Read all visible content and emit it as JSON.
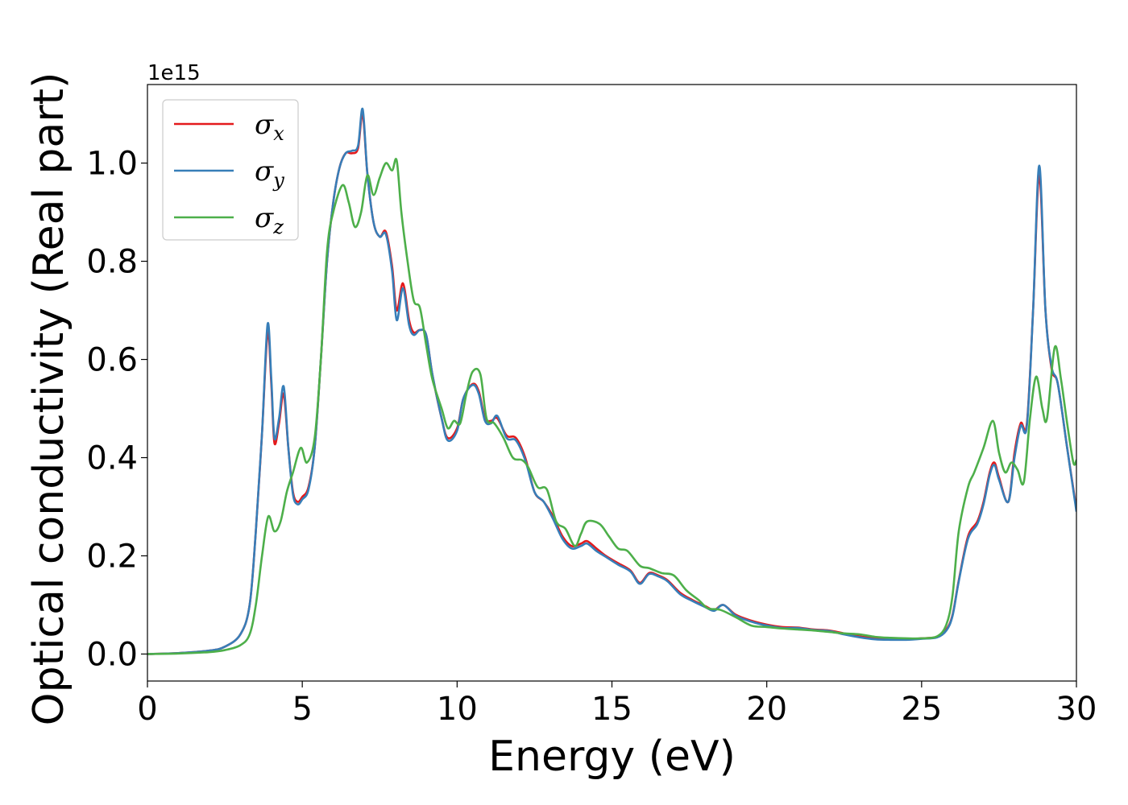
{
  "chart_data": {
    "type": "line",
    "title": "",
    "xlabel": "Energy (eV)",
    "ylabel": "Optical conductivity (Real part)",
    "y_offset_label": "1e15",
    "xlim": [
      0,
      30
    ],
    "ylim": [
      -0.055,
      1.16
    ],
    "xticks": [
      0,
      5,
      10,
      15,
      20,
      25,
      30
    ],
    "xtick_labels": [
      "0",
      "5",
      "10",
      "15",
      "20",
      "25",
      "30"
    ],
    "yticks": [
      0.0,
      0.2,
      0.4,
      0.6,
      0.8,
      1.0
    ],
    "ytick_labels": [
      "0.0",
      "0.2",
      "0.4",
      "0.6",
      "0.8",
      "1.0"
    ],
    "grid": false,
    "legend_position": "top-left",
    "series": [
      {
        "name": "σx",
        "legend_symbol": "σ",
        "legend_sub": "x",
        "color": "#e41a1c",
        "points": [
          [
            0,
            0
          ],
          [
            1,
            0.002
          ],
          [
            2,
            0.007
          ],
          [
            2.5,
            0.015
          ],
          [
            3,
            0.04
          ],
          [
            3.3,
            0.1
          ],
          [
            3.5,
            0.25
          ],
          [
            3.7,
            0.45
          ],
          [
            3.88,
            0.655
          ],
          [
            4,
            0.55
          ],
          [
            4.1,
            0.43
          ],
          [
            4.25,
            0.47
          ],
          [
            4.4,
            0.53
          ],
          [
            4.55,
            0.42
          ],
          [
            4.7,
            0.33
          ],
          [
            4.85,
            0.31
          ],
          [
            5,
            0.32
          ],
          [
            5.2,
            0.34
          ],
          [
            5.4,
            0.42
          ],
          [
            5.6,
            0.6
          ],
          [
            5.8,
            0.8
          ],
          [
            6,
            0.92
          ],
          [
            6.2,
            0.99
          ],
          [
            6.4,
            1.02
          ],
          [
            6.6,
            1.02
          ],
          [
            6.8,
            1.03
          ],
          [
            6.95,
            1.1
          ],
          [
            7.1,
            0.98
          ],
          [
            7.3,
            0.88
          ],
          [
            7.5,
            0.85
          ],
          [
            7.7,
            0.86
          ],
          [
            7.9,
            0.79
          ],
          [
            8.05,
            0.7
          ],
          [
            8.25,
            0.755
          ],
          [
            8.45,
            0.68
          ],
          [
            8.6,
            0.655
          ],
          [
            8.8,
            0.66
          ],
          [
            9,
            0.65
          ],
          [
            9.2,
            0.57
          ],
          [
            9.5,
            0.48
          ],
          [
            9.7,
            0.44
          ],
          [
            10,
            0.46
          ],
          [
            10.2,
            0.52
          ],
          [
            10.5,
            0.55
          ],
          [
            10.7,
            0.535
          ],
          [
            10.9,
            0.48
          ],
          [
            11.1,
            0.475
          ],
          [
            11.3,
            0.48
          ],
          [
            11.6,
            0.445
          ],
          [
            11.9,
            0.44
          ],
          [
            12.2,
            0.4
          ],
          [
            12.5,
            0.33
          ],
          [
            12.8,
            0.31
          ],
          [
            13.1,
            0.28
          ],
          [
            13.4,
            0.24
          ],
          [
            13.7,
            0.22
          ],
          [
            14,
            0.225
          ],
          [
            14.2,
            0.23
          ],
          [
            14.5,
            0.215
          ],
          [
            14.8,
            0.2
          ],
          [
            15.2,
            0.185
          ],
          [
            15.6,
            0.17
          ],
          [
            15.9,
            0.145
          ],
          [
            16.2,
            0.165
          ],
          [
            16.5,
            0.16
          ],
          [
            16.8,
            0.15
          ],
          [
            17.2,
            0.125
          ],
          [
            17.6,
            0.11
          ],
          [
            18,
            0.098
          ],
          [
            18.3,
            0.09
          ],
          [
            18.6,
            0.1
          ],
          [
            19,
            0.08
          ],
          [
            19.5,
            0.068
          ],
          [
            20,
            0.06
          ],
          [
            20.5,
            0.055
          ],
          [
            21,
            0.054
          ],
          [
            21.5,
            0.05
          ],
          [
            22,
            0.048
          ],
          [
            22.5,
            0.042
          ],
          [
            23,
            0.036
          ],
          [
            23.5,
            0.032
          ],
          [
            24,
            0.03
          ],
          [
            24.5,
            0.03
          ],
          [
            25,
            0.032
          ],
          [
            25.5,
            0.035
          ],
          [
            25.8,
            0.05
          ],
          [
            26,
            0.08
          ],
          [
            26.2,
            0.15
          ],
          [
            26.5,
            0.24
          ],
          [
            26.8,
            0.27
          ],
          [
            27,
            0.31
          ],
          [
            27.2,
            0.37
          ],
          [
            27.35,
            0.39
          ],
          [
            27.5,
            0.36
          ],
          [
            27.8,
            0.31
          ],
          [
            28,
            0.41
          ],
          [
            28.2,
            0.47
          ],
          [
            28.4,
            0.47
          ],
          [
            28.6,
            0.7
          ],
          [
            28.8,
            0.975
          ],
          [
            29,
            0.7
          ],
          [
            29.2,
            0.58
          ],
          [
            29.4,
            0.55
          ],
          [
            29.7,
            0.42
          ],
          [
            30,
            0.295
          ]
        ]
      },
      {
        "name": "σy",
        "legend_symbol": "σ",
        "legend_sub": "y",
        "color": "#377eb8",
        "points": [
          [
            0,
            0
          ],
          [
            1,
            0.002
          ],
          [
            2,
            0.007
          ],
          [
            2.5,
            0.015
          ],
          [
            3,
            0.04
          ],
          [
            3.3,
            0.1
          ],
          [
            3.5,
            0.25
          ],
          [
            3.7,
            0.45
          ],
          [
            3.88,
            0.672
          ],
          [
            4,
            0.56
          ],
          [
            4.1,
            0.44
          ],
          [
            4.25,
            0.48
          ],
          [
            4.4,
            0.545
          ],
          [
            4.55,
            0.42
          ],
          [
            4.7,
            0.325
          ],
          [
            4.85,
            0.305
          ],
          [
            5,
            0.315
          ],
          [
            5.2,
            0.335
          ],
          [
            5.4,
            0.42
          ],
          [
            5.6,
            0.6
          ],
          [
            5.8,
            0.8
          ],
          [
            6,
            0.92
          ],
          [
            6.2,
            0.99
          ],
          [
            6.4,
            1.02
          ],
          [
            6.6,
            1.025
          ],
          [
            6.8,
            1.035
          ],
          [
            6.95,
            1.11
          ],
          [
            7.1,
            0.98
          ],
          [
            7.3,
            0.88
          ],
          [
            7.5,
            0.85
          ],
          [
            7.7,
            0.855
          ],
          [
            7.9,
            0.78
          ],
          [
            8.05,
            0.68
          ],
          [
            8.25,
            0.745
          ],
          [
            8.45,
            0.67
          ],
          [
            8.6,
            0.65
          ],
          [
            8.8,
            0.66
          ],
          [
            9,
            0.65
          ],
          [
            9.2,
            0.57
          ],
          [
            9.5,
            0.48
          ],
          [
            9.7,
            0.435
          ],
          [
            10,
            0.455
          ],
          [
            10.2,
            0.52
          ],
          [
            10.5,
            0.548
          ],
          [
            10.7,
            0.53
          ],
          [
            10.9,
            0.475
          ],
          [
            11.1,
            0.47
          ],
          [
            11.3,
            0.485
          ],
          [
            11.6,
            0.44
          ],
          [
            11.9,
            0.435
          ],
          [
            12.2,
            0.395
          ],
          [
            12.5,
            0.33
          ],
          [
            12.8,
            0.31
          ],
          [
            13.1,
            0.275
          ],
          [
            13.4,
            0.235
          ],
          [
            13.7,
            0.215
          ],
          [
            14,
            0.22
          ],
          [
            14.2,
            0.225
          ],
          [
            14.5,
            0.21
          ],
          [
            14.8,
            0.198
          ],
          [
            15.2,
            0.182
          ],
          [
            15.6,
            0.168
          ],
          [
            15.9,
            0.143
          ],
          [
            16.2,
            0.163
          ],
          [
            16.5,
            0.158
          ],
          [
            16.8,
            0.148
          ],
          [
            17.2,
            0.122
          ],
          [
            17.6,
            0.108
          ],
          [
            18,
            0.096
          ],
          [
            18.3,
            0.088
          ],
          [
            18.6,
            0.1
          ],
          [
            19,
            0.078
          ],
          [
            19.5,
            0.066
          ],
          [
            20,
            0.058
          ],
          [
            20.5,
            0.053
          ],
          [
            21,
            0.053
          ],
          [
            21.5,
            0.049
          ],
          [
            22,
            0.047
          ],
          [
            22.5,
            0.04
          ],
          [
            23,
            0.034
          ],
          [
            23.5,
            0.03
          ],
          [
            24,
            0.029
          ],
          [
            24.5,
            0.029
          ],
          [
            25,
            0.031
          ],
          [
            25.5,
            0.034
          ],
          [
            25.8,
            0.048
          ],
          [
            26,
            0.078
          ],
          [
            26.2,
            0.148
          ],
          [
            26.5,
            0.235
          ],
          [
            26.8,
            0.265
          ],
          [
            27,
            0.305
          ],
          [
            27.2,
            0.365
          ],
          [
            27.35,
            0.385
          ],
          [
            27.5,
            0.355
          ],
          [
            27.8,
            0.31
          ],
          [
            28,
            0.4
          ],
          [
            28.2,
            0.465
          ],
          [
            28.4,
            0.465
          ],
          [
            28.6,
            0.7
          ],
          [
            28.8,
            0.995
          ],
          [
            29,
            0.7
          ],
          [
            29.2,
            0.585
          ],
          [
            29.4,
            0.55
          ],
          [
            29.7,
            0.42
          ],
          [
            30,
            0.29
          ]
        ]
      },
      {
        "name": "σz",
        "legend_symbol": "σ",
        "legend_sub": "z",
        "color": "#4daf4a",
        "points": [
          [
            0,
            0
          ],
          [
            1,
            0.001
          ],
          [
            2,
            0.004
          ],
          [
            2.5,
            0.008
          ],
          [
            3,
            0.018
          ],
          [
            3.3,
            0.04
          ],
          [
            3.5,
            0.1
          ],
          [
            3.7,
            0.2
          ],
          [
            3.9,
            0.28
          ],
          [
            4.1,
            0.25
          ],
          [
            4.3,
            0.27
          ],
          [
            4.5,
            0.33
          ],
          [
            4.7,
            0.37
          ],
          [
            4.95,
            0.42
          ],
          [
            5.15,
            0.39
          ],
          [
            5.4,
            0.44
          ],
          [
            5.6,
            0.6
          ],
          [
            5.8,
            0.82
          ],
          [
            6,
            0.9
          ],
          [
            6.3,
            0.955
          ],
          [
            6.5,
            0.92
          ],
          [
            6.7,
            0.87
          ],
          [
            6.9,
            0.9
          ],
          [
            7.1,
            0.975
          ],
          [
            7.3,
            0.935
          ],
          [
            7.5,
            0.97
          ],
          [
            7.7,
            1.0
          ],
          [
            7.9,
            0.985
          ],
          [
            8.05,
            1.005
          ],
          [
            8.2,
            0.9
          ],
          [
            8.4,
            0.8
          ],
          [
            8.6,
            0.72
          ],
          [
            8.8,
            0.705
          ],
          [
            9,
            0.63
          ],
          [
            9.2,
            0.56
          ],
          [
            9.5,
            0.5
          ],
          [
            9.7,
            0.46
          ],
          [
            9.9,
            0.475
          ],
          [
            10.1,
            0.47
          ],
          [
            10.3,
            0.53
          ],
          [
            10.5,
            0.575
          ],
          [
            10.75,
            0.57
          ],
          [
            10.95,
            0.48
          ],
          [
            11.2,
            0.47
          ],
          [
            11.5,
            0.44
          ],
          [
            11.8,
            0.4
          ],
          [
            12.1,
            0.395
          ],
          [
            12.3,
            0.38
          ],
          [
            12.6,
            0.34
          ],
          [
            12.9,
            0.335
          ],
          [
            13.2,
            0.27
          ],
          [
            13.5,
            0.255
          ],
          [
            13.8,
            0.22
          ],
          [
            14,
            0.245
          ],
          [
            14.2,
            0.27
          ],
          [
            14.6,
            0.265
          ],
          [
            14.9,
            0.24
          ],
          [
            15.2,
            0.215
          ],
          [
            15.5,
            0.21
          ],
          [
            15.9,
            0.18
          ],
          [
            16.2,
            0.175
          ],
          [
            16.6,
            0.165
          ],
          [
            17,
            0.16
          ],
          [
            17.4,
            0.13
          ],
          [
            17.8,
            0.11
          ],
          [
            18.1,
            0.093
          ],
          [
            18.5,
            0.09
          ],
          [
            19,
            0.075
          ],
          [
            19.5,
            0.058
          ],
          [
            20,
            0.055
          ],
          [
            20.5,
            0.052
          ],
          [
            21,
            0.05
          ],
          [
            21.5,
            0.048
          ],
          [
            22,
            0.045
          ],
          [
            22.5,
            0.042
          ],
          [
            23,
            0.04
          ],
          [
            23.5,
            0.035
          ],
          [
            24,
            0.033
          ],
          [
            24.5,
            0.032
          ],
          [
            25,
            0.032
          ],
          [
            25.5,
            0.036
          ],
          [
            25.8,
            0.06
          ],
          [
            26,
            0.12
          ],
          [
            26.2,
            0.25
          ],
          [
            26.5,
            0.34
          ],
          [
            26.7,
            0.37
          ],
          [
            27,
            0.42
          ],
          [
            27.3,
            0.475
          ],
          [
            27.5,
            0.41
          ],
          [
            27.7,
            0.37
          ],
          [
            27.9,
            0.39
          ],
          [
            28.1,
            0.375
          ],
          [
            28.3,
            0.35
          ],
          [
            28.5,
            0.48
          ],
          [
            28.7,
            0.565
          ],
          [
            28.9,
            0.5
          ],
          [
            29.05,
            0.48
          ],
          [
            29.3,
            0.625
          ],
          [
            29.5,
            0.56
          ],
          [
            29.7,
            0.47
          ],
          [
            29.9,
            0.39
          ],
          [
            30,
            0.395
          ]
        ]
      }
    ]
  }
}
